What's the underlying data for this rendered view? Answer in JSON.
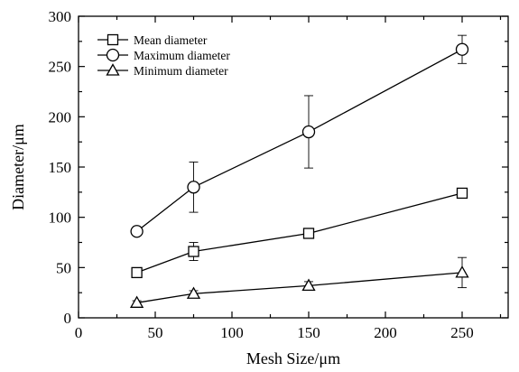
{
  "chart_data": {
    "type": "line",
    "title": "",
    "xlabel": "Mesh Size/μm",
    "ylabel": "Diameter/μm",
    "xlim": [
      0,
      280
    ],
    "ylim": [
      0,
      300
    ],
    "xticks": [
      0,
      50,
      100,
      150,
      200,
      250
    ],
    "yticks": [
      0,
      50,
      100,
      150,
      200,
      250,
      300
    ],
    "grid": false,
    "legend_position": "top-left",
    "x": [
      38,
      75,
      150,
      250
    ],
    "series": [
      {
        "name": "Mean diameter",
        "marker": "square",
        "values": [
          45,
          66,
          84,
          124
        ],
        "error": [
          3,
          9,
          4,
          3
        ]
      },
      {
        "name": "Maximum diameter",
        "marker": "circle",
        "values": [
          86,
          130,
          185,
          267
        ],
        "error": [
          3,
          25,
          36,
          14
        ]
      },
      {
        "name": "Minimum diameter",
        "marker": "triangle",
        "values": [
          15,
          24,
          32,
          45
        ],
        "error": [
          2,
          3,
          4,
          15
        ]
      }
    ]
  }
}
